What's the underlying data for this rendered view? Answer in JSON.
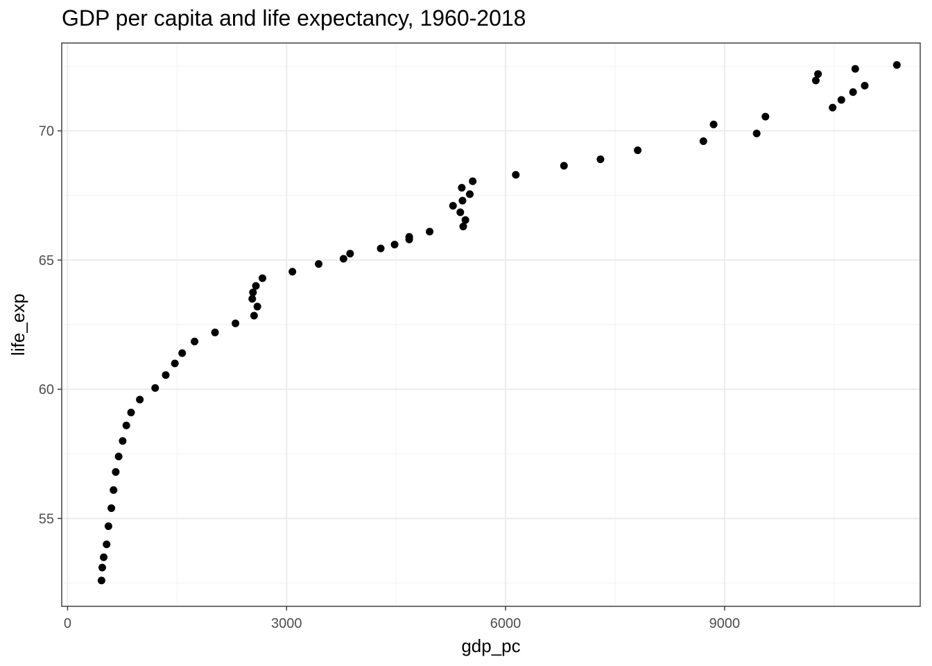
{
  "chart_data": {
    "type": "scatter",
    "title": "GDP per capita and life expectancy, 1960-2018",
    "xlabel": "gdp_pc",
    "ylabel": "life_exp",
    "xlim": [
      -80,
      11680
    ],
    "ylim": [
      51.6,
      73.4
    ],
    "x_ticks": [
      0,
      3000,
      6000,
      9000
    ],
    "y_ticks": [
      55,
      60,
      65,
      70
    ],
    "grid": true,
    "legend": "none",
    "colors": {
      "point": "#000000",
      "panel_border": "#333333",
      "grid_major": "#ebebeb",
      "grid_minor": "#f2f2f2"
    },
    "points": [
      {
        "x": 465,
        "y": 52.6
      },
      {
        "x": 475,
        "y": 53.1
      },
      {
        "x": 495,
        "y": 53.5
      },
      {
        "x": 535,
        "y": 54.0
      },
      {
        "x": 560,
        "y": 54.7
      },
      {
        "x": 600,
        "y": 55.4
      },
      {
        "x": 630,
        "y": 56.1
      },
      {
        "x": 660,
        "y": 56.8
      },
      {
        "x": 700,
        "y": 57.4
      },
      {
        "x": 755,
        "y": 58.0
      },
      {
        "x": 805,
        "y": 58.6
      },
      {
        "x": 870,
        "y": 59.1
      },
      {
        "x": 990,
        "y": 59.6
      },
      {
        "x": 1200,
        "y": 60.05
      },
      {
        "x": 1345,
        "y": 60.55
      },
      {
        "x": 1470,
        "y": 61.0
      },
      {
        "x": 1570,
        "y": 61.4
      },
      {
        "x": 1740,
        "y": 61.85
      },
      {
        "x": 2020,
        "y": 62.2
      },
      {
        "x": 2300,
        "y": 62.55
      },
      {
        "x": 2555,
        "y": 62.85
      },
      {
        "x": 2600,
        "y": 63.2
      },
      {
        "x": 2530,
        "y": 63.5
      },
      {
        "x": 2540,
        "y": 63.75
      },
      {
        "x": 2580,
        "y": 64.0
      },
      {
        "x": 2670,
        "y": 64.3
      },
      {
        "x": 3080,
        "y": 64.55
      },
      {
        "x": 3440,
        "y": 64.85
      },
      {
        "x": 3780,
        "y": 65.05
      },
      {
        "x": 3870,
        "y": 65.25
      },
      {
        "x": 4290,
        "y": 65.45
      },
      {
        "x": 4480,
        "y": 65.6
      },
      {
        "x": 4680,
        "y": 65.8
      },
      {
        "x": 4680,
        "y": 65.9
      },
      {
        "x": 4960,
        "y": 66.1
      },
      {
        "x": 5420,
        "y": 66.3
      },
      {
        "x": 5450,
        "y": 66.55
      },
      {
        "x": 5380,
        "y": 66.85
      },
      {
        "x": 5280,
        "y": 67.1
      },
      {
        "x": 5410,
        "y": 67.3
      },
      {
        "x": 5510,
        "y": 67.55
      },
      {
        "x": 5400,
        "y": 67.8
      },
      {
        "x": 5550,
        "y": 68.05
      },
      {
        "x": 6140,
        "y": 68.3
      },
      {
        "x": 6800,
        "y": 68.65
      },
      {
        "x": 7300,
        "y": 68.9
      },
      {
        "x": 7810,
        "y": 69.25
      },
      {
        "x": 8710,
        "y": 69.6
      },
      {
        "x": 8850,
        "y": 70.25
      },
      {
        "x": 9440,
        "y": 69.9
      },
      {
        "x": 9560,
        "y": 70.55
      },
      {
        "x": 10250,
        "y": 71.95
      },
      {
        "x": 10280,
        "y": 72.2
      },
      {
        "x": 10480,
        "y": 70.9
      },
      {
        "x": 10600,
        "y": 71.2
      },
      {
        "x": 10760,
        "y": 71.5
      },
      {
        "x": 10790,
        "y": 72.4
      },
      {
        "x": 10920,
        "y": 71.75
      },
      {
        "x": 11360,
        "y": 72.55
      }
    ]
  }
}
